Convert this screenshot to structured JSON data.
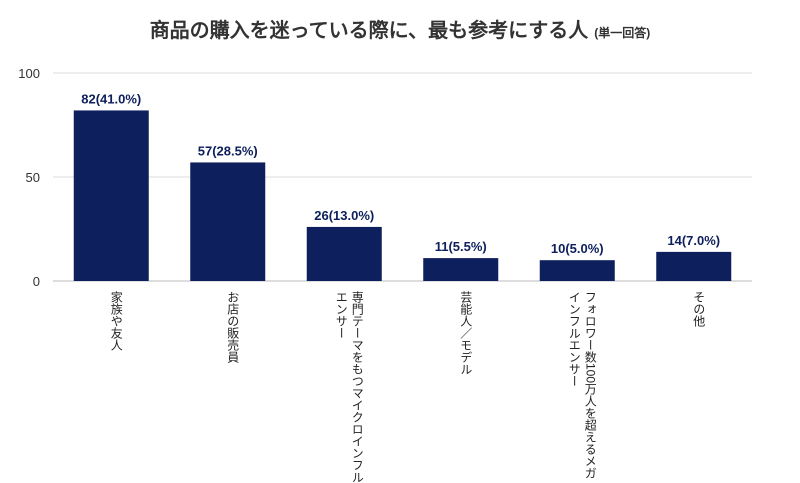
{
  "chart_data": {
    "type": "bar",
    "title": "商品の購入を迷っている際に、最も参考にする人",
    "subtitle": "(単一回答)",
    "categories": [
      "家族や友人",
      "お店の販売員",
      "専門テーマをもつマイクロインフル\nエンサー",
      "芸能人／モデル",
      "フォロワー数100万人を超えるメガ\nインフルエンサー",
      "その他"
    ],
    "values": [
      82,
      57,
      26,
      11,
      10,
      14
    ],
    "data_labels": [
      "82(41.0%)",
      "57(28.5%)",
      "26(13.0%)",
      "11(5.5%)",
      "10(5.0%)",
      "14(7.0%)"
    ],
    "ylim": [
      0,
      100
    ],
    "yticks": [
      0,
      50,
      100
    ],
    "ytick_labels": [
      "0",
      "50",
      "100"
    ],
    "xlabel": "",
    "ylabel": "",
    "grid": true,
    "bar_color": "#0d1f5c"
  }
}
